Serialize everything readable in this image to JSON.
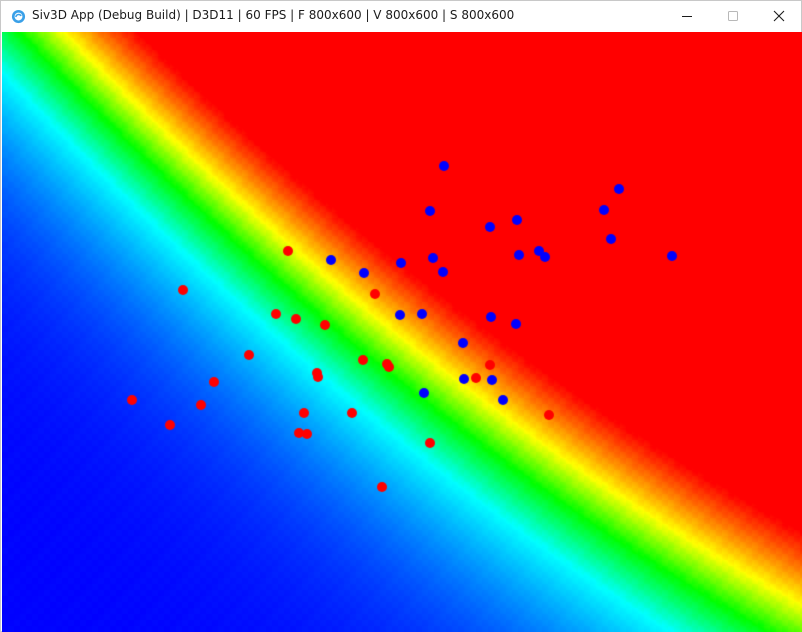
{
  "window": {
    "title": "Siv3D App (Debug Build) | D3D11 | 60 FPS | F 800x600 | V 800x600 | S 800x600",
    "icon": "siv3d-app-icon",
    "controls": [
      "minimize-icon",
      "maximize-icon",
      "close-icon"
    ]
  },
  "canvas": {
    "content": "classification heatmap with two point classes",
    "colormap": [
      "#0000ff",
      "#00ffff",
      "#00ff00",
      "#ffff00",
      "#ff0000"
    ],
    "classes": [
      {
        "color": "#0000ff"
      },
      {
        "color": "#ff0000"
      }
    ]
  }
}
